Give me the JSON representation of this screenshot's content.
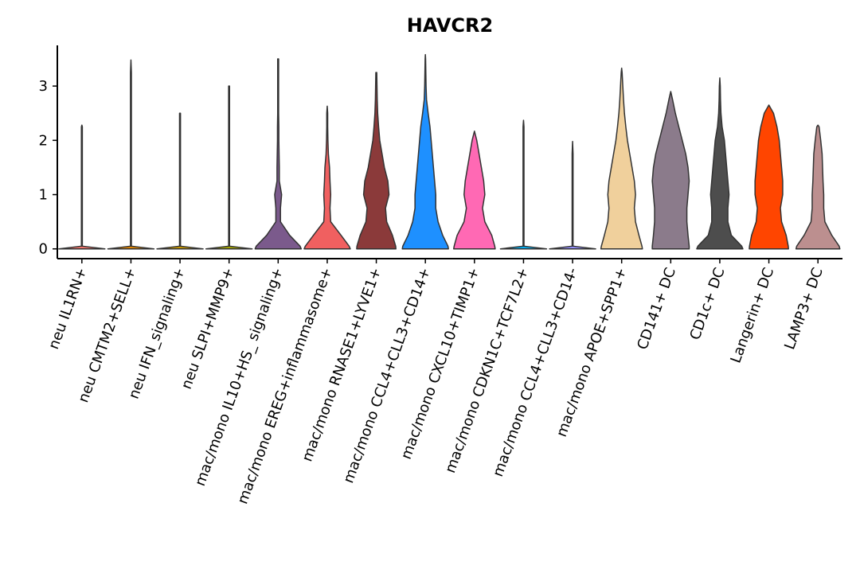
{
  "chart_data": {
    "type": "violin",
    "title": "HAVCR2",
    "categories": [
      "neu IL1RN+",
      "neu CMTM2+SELL+",
      "neu IFN_signaling+",
      "neu SLPI+MMP9+",
      "mac/mono IL10+HS_ signaling+",
      "mac/mono EREG+inflammasome+",
      "mac/mono RNASE1+LYVE1+",
      "mac/mono CCL4+CLL3+CD14+",
      "mac/mono CXCL10+TIMP1+",
      "mac/mono CDKN1C+TCF7L2+",
      "mac/mono CCL4+CLL3+CD14-",
      "mac/mono APOE+SPP1+",
      "CD141+ DC",
      "CD1c+ DC",
      "Langerin+ DC",
      "LAMP3+ DC"
    ],
    "density_y": [
      0,
      0.05,
      0.25,
      0.5,
      0.75,
      1,
      1.25,
      1.5,
      1.75,
      2,
      2.25,
      2.5,
      2.75,
      3,
      3.25,
      3.5
    ],
    "series": [
      {
        "color": "#f8766d",
        "max": 2.28,
        "profile": [
          1,
          0.02,
          0.02,
          0.02,
          0.02,
          0.02,
          0.02,
          0.02,
          0.02,
          0.02,
          0.02,
          null,
          null,
          null,
          null,
          null
        ]
      },
      {
        "color": "#e58700",
        "max": 3.48,
        "profile": [
          1,
          0.02,
          0.02,
          0.02,
          0.02,
          0.02,
          0.02,
          0.02,
          0.02,
          0.02,
          0.02,
          0.02,
          0.02,
          0.02,
          0.02,
          null
        ]
      },
      {
        "color": "#c99800",
        "max": 2.5,
        "profile": [
          1,
          0.02,
          0.02,
          0.02,
          0.02,
          0.02,
          0.02,
          0.02,
          0.02,
          0.02,
          0.02,
          0.02,
          null,
          null,
          null,
          null
        ]
      },
      {
        "color": "#a3a500",
        "max": 3.0,
        "profile": [
          1,
          0.02,
          0.02,
          0.02,
          0.02,
          0.02,
          0.02,
          0.02,
          0.02,
          0.02,
          0.02,
          0.02,
          0.02,
          0.02,
          null,
          null
        ]
      },
      {
        "color": "#7b5a8c",
        "max": 3.5,
        "profile": [
          1,
          0.95,
          0.5,
          0.1,
          0.1,
          0.15,
          0.05,
          0.05,
          0.04,
          0.03,
          0.03,
          0.02,
          0.02,
          0.02,
          0.02,
          0.02
        ]
      },
      {
        "color": "#f06060",
        "max": 2.63,
        "profile": [
          1,
          0.95,
          0.6,
          0.15,
          0.12,
          0.15,
          0.12,
          0.1,
          0.05,
          0.03,
          0.02,
          0.02,
          null,
          null,
          null,
          null
        ]
      },
      {
        "color": "#8b3a3a",
        "max": 3.25,
        "profile": [
          0.85,
          0.84,
          0.7,
          0.45,
          0.4,
          0.55,
          0.5,
          0.35,
          0.25,
          0.15,
          0.1,
          0.06,
          0.04,
          0.03,
          0.02,
          null
        ]
      },
      {
        "color": "#1e90ff",
        "max": 3.58,
        "profile": [
          1,
          0.98,
          0.75,
          0.55,
          0.45,
          0.45,
          0.4,
          0.35,
          0.3,
          0.25,
          0.2,
          0.12,
          0.05,
          0.03,
          0.02,
          0.01
        ]
      },
      {
        "color": "#ff69b4",
        "max": 2.17,
        "profile": [
          0.9,
          0.88,
          0.75,
          0.45,
          0.35,
          0.45,
          0.4,
          0.3,
          0.2,
          0.1,
          null,
          null,
          null,
          null,
          null,
          null
        ]
      },
      {
        "color": "#00b0f6",
        "max": 2.37,
        "profile": [
          1,
          0.02,
          0.02,
          0.02,
          0.02,
          0.02,
          0.02,
          0.02,
          0.02,
          0.02,
          0.02,
          null,
          null,
          null,
          null,
          null
        ]
      },
      {
        "color": "#9590ff",
        "max": 1.98,
        "profile": [
          1,
          0.02,
          0.02,
          0.02,
          0.02,
          0.02,
          0.02,
          0.02,
          0.02,
          null,
          null,
          null,
          null,
          null,
          null,
          null
        ]
      },
      {
        "color": "#f0d09c",
        "max": 3.33,
        "profile": [
          0.9,
          0.88,
          0.75,
          0.6,
          0.55,
          0.6,
          0.55,
          0.45,
          0.35,
          0.25,
          0.18,
          0.12,
          0.08,
          0.05,
          0.02,
          null
        ]
      },
      {
        "color": "#8b7b8b",
        "max": 2.9,
        "profile": [
          0.8,
          0.8,
          0.75,
          0.7,
          0.7,
          0.75,
          0.8,
          0.75,
          0.65,
          0.5,
          0.35,
          0.2,
          0.08,
          null,
          null,
          null
        ]
      },
      {
        "color": "#4d4d4d",
        "max": 3.15,
        "profile": [
          1,
          0.95,
          0.5,
          0.35,
          0.35,
          0.4,
          0.35,
          0.3,
          0.25,
          0.2,
          0.1,
          0.05,
          0.03,
          0.02,
          null,
          null
        ]
      },
      {
        "color": "#ff4500",
        "max": 2.65,
        "profile": [
          0.85,
          0.84,
          0.75,
          0.55,
          0.5,
          0.6,
          0.6,
          0.55,
          0.5,
          0.45,
          0.35,
          0.2,
          null,
          null,
          null,
          null
        ]
      },
      {
        "color": "#bc8f8f",
        "max": 2.28,
        "profile": [
          0.95,
          0.92,
          0.6,
          0.3,
          0.25,
          0.25,
          0.22,
          0.2,
          0.18,
          0.12,
          0.05,
          null,
          null,
          null,
          null,
          null
        ]
      }
    ],
    "ylim": [
      -0.18,
      3.75
    ],
    "yticks": [
      0,
      1,
      2,
      3
    ]
  }
}
